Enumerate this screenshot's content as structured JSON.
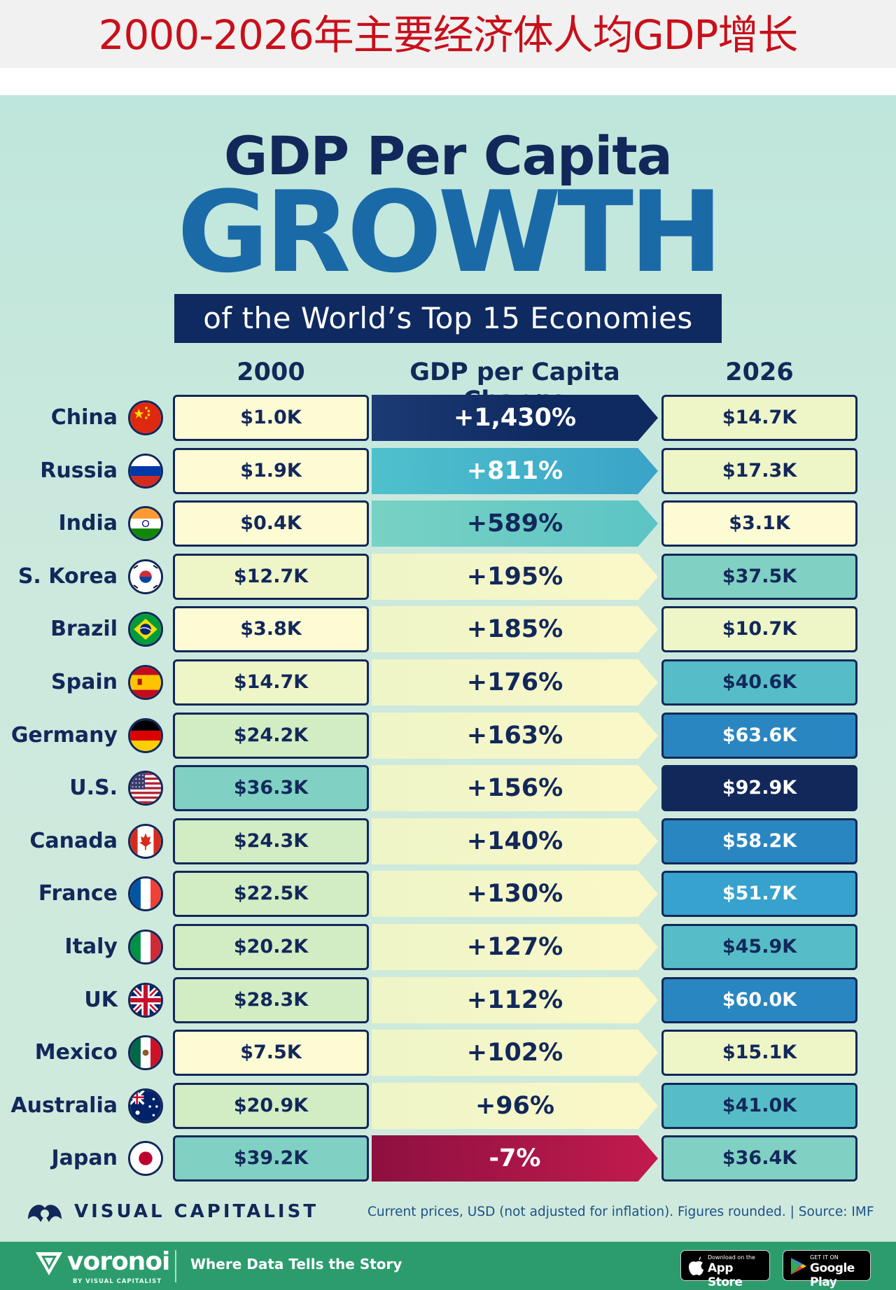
{
  "page_header": {
    "title": "2000-2026年主要经济体人均GDP增长"
  },
  "infographic": {
    "title_line1": "GDP Per Capita",
    "title_line2": "GROWTH",
    "subtitle": "of the World’s Top 15 Economies",
    "col_2000": "2000",
    "col_change": "GDP per Capita Change",
    "col_2026": "2026"
  },
  "chart_data": {
    "type": "table",
    "title": "GDP Per Capita GROWTH of the World’s Top 15 Economies",
    "columns": [
      "2000",
      "GDP per Capita Change",
      "2026"
    ],
    "rows": [
      {
        "country": "China",
        "flag": "china-flag-icon",
        "v2000": "$1.0K",
        "change": "+1,430%",
        "v2026": "$14.7K",
        "change_num": 1430,
        "v2000_num": 1.0,
        "v2026_num": 14.7
      },
      {
        "country": "Russia",
        "flag": "russia-flag-icon",
        "v2000": "$1.9K",
        "change": "+811%",
        "v2026": "$17.3K",
        "change_num": 811,
        "v2000_num": 1.9,
        "v2026_num": 17.3
      },
      {
        "country": "India",
        "flag": "india-flag-icon",
        "v2000": "$0.4K",
        "change": "+589%",
        "v2026": "$3.1K",
        "change_num": 589,
        "v2000_num": 0.4,
        "v2026_num": 3.1
      },
      {
        "country": "S. Korea",
        "flag": "south-korea-flag-icon",
        "v2000": "$12.7K",
        "change": "+195%",
        "v2026": "$37.5K",
        "change_num": 195,
        "v2000_num": 12.7,
        "v2026_num": 37.5
      },
      {
        "country": "Brazil",
        "flag": "brazil-flag-icon",
        "v2000": "$3.8K",
        "change": "+185%",
        "v2026": "$10.7K",
        "change_num": 185,
        "v2000_num": 3.8,
        "v2026_num": 10.7
      },
      {
        "country": "Spain",
        "flag": "spain-flag-icon",
        "v2000": "$14.7K",
        "change": "+176%",
        "v2026": "$40.6K",
        "change_num": 176,
        "v2000_num": 14.7,
        "v2026_num": 40.6
      },
      {
        "country": "Germany",
        "flag": "germany-flag-icon",
        "v2000": "$24.2K",
        "change": "+163%",
        "v2026": "$63.6K",
        "change_num": 163,
        "v2000_num": 24.2,
        "v2026_num": 63.6
      },
      {
        "country": "U.S.",
        "flag": "us-flag-icon",
        "v2000": "$36.3K",
        "change": "+156%",
        "v2026": "$92.9K",
        "change_num": 156,
        "v2000_num": 36.3,
        "v2026_num": 92.9
      },
      {
        "country": "Canada",
        "flag": "canada-flag-icon",
        "v2000": "$24.3K",
        "change": "+140%",
        "v2026": "$58.2K",
        "change_num": 140,
        "v2000_num": 24.3,
        "v2026_num": 58.2
      },
      {
        "country": "France",
        "flag": "france-flag-icon",
        "v2000": "$22.5K",
        "change": "+130%",
        "v2026": "$51.7K",
        "change_num": 130,
        "v2000_num": 22.5,
        "v2026_num": 51.7
      },
      {
        "country": "Italy",
        "flag": "italy-flag-icon",
        "v2000": "$20.2K",
        "change": "+127%",
        "v2026": "$45.9K",
        "change_num": 127,
        "v2000_num": 20.2,
        "v2026_num": 45.9
      },
      {
        "country": "UK",
        "flag": "uk-flag-icon",
        "v2000": "$28.3K",
        "change": "+112%",
        "v2026": "$60.0K",
        "change_num": 112,
        "v2000_num": 28.3,
        "v2026_num": 60.0
      },
      {
        "country": "Mexico",
        "flag": "mexico-flag-icon",
        "v2000": "$7.5K",
        "change": "+102%",
        "v2026": "$15.1K",
        "change_num": 102,
        "v2000_num": 7.5,
        "v2026_num": 15.1
      },
      {
        "country": "Australia",
        "flag": "australia-flag-icon",
        "v2000": "$20.9K",
        "change": "+96%",
        "v2026": "$41.0K",
        "change_num": 96,
        "v2000_num": 20.9,
        "v2026_num": 41.0
      },
      {
        "country": "Japan",
        "flag": "japan-flag-icon",
        "v2000": "$39.2K",
        "change": "-7%",
        "v2026": "$36.4K",
        "change_num": -7,
        "v2000_num": 39.2,
        "v2026_num": 36.4
      }
    ]
  },
  "colors": {
    "navy": "#12285a",
    "title_blue": "#1b6aa8",
    "japan_red": "#a8154a",
    "header_red": "#c8101b",
    "footer_green": "#2d9c6d"
  },
  "footer": {
    "brand": "VISUAL CAPITALIST",
    "note": "Current prices, USD (not adjusted for inflation). Figures rounded. | Source: IMF"
  },
  "bottom_bar": {
    "logo": "voronoi",
    "logo_sub": "BY VISUAL CAPITALIST",
    "tagline": "Where Data Tells the Story",
    "app_store_small": "Download on the",
    "app_store_big": "App Store",
    "google_play_small": "GET IT ON",
    "google_play_big": "Google Play"
  }
}
